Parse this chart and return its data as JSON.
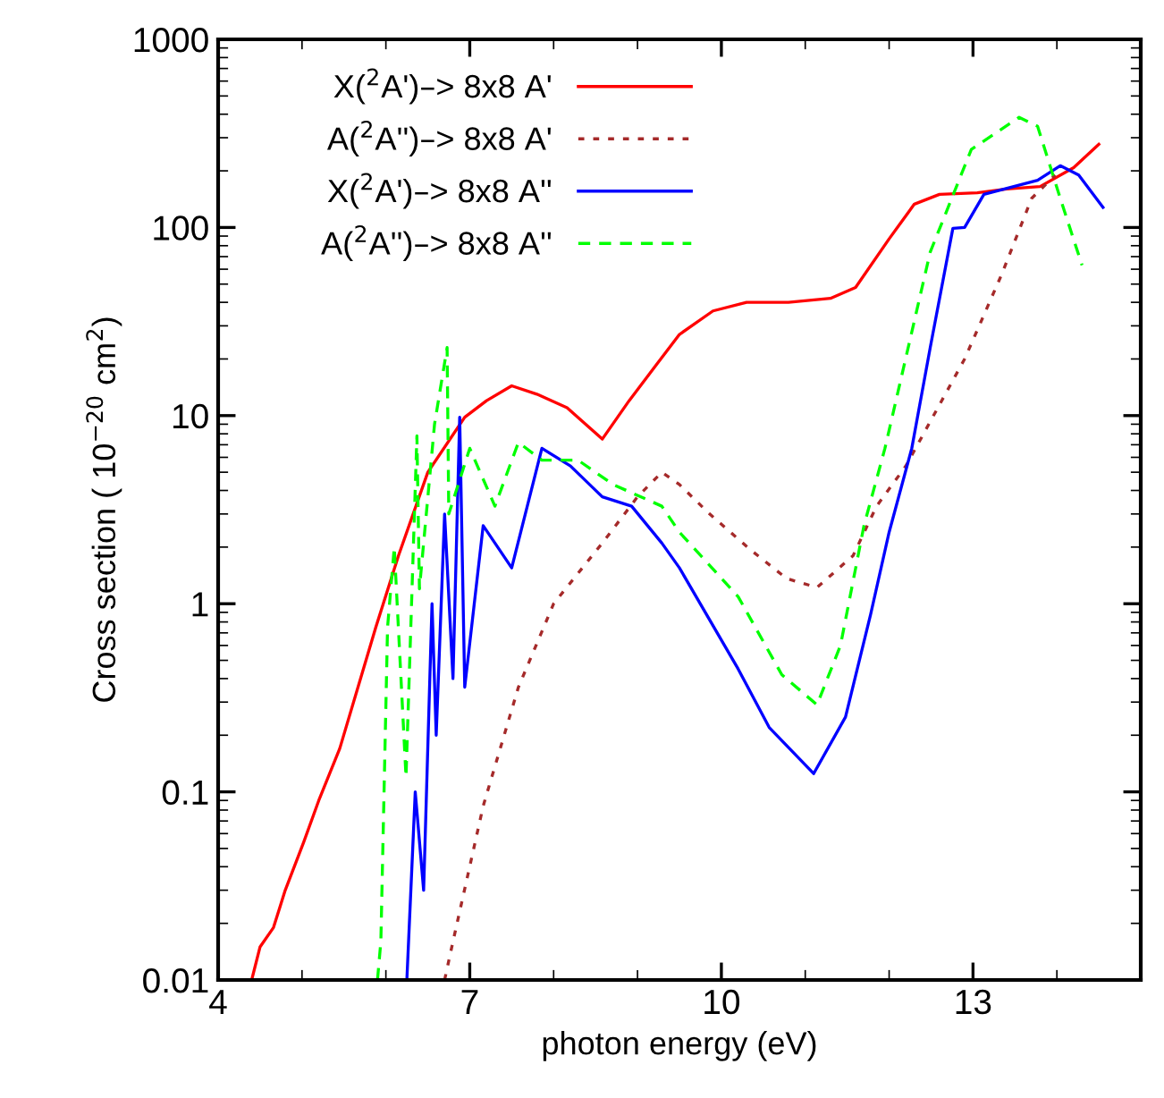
{
  "chart_data": {
    "type": "line",
    "xlabel": "photon energy (eV)",
    "ylabel": "Cross section ( 10$^{−20}$ cm$^{2}$)",
    "log": "y",
    "xlim": [
      4,
      15
    ],
    "xticks": [
      4,
      7,
      10,
      13
    ],
    "ylim": [
      0.01,
      1000
    ],
    "yticks": [
      0.01,
      0.1,
      1,
      10,
      100,
      1000
    ],
    "grid": false,
    "legend": "top left",
    "series": [
      {
        "name": "X($^{2}$A')–> 8x8 A'",
        "color": "#ff0000",
        "line_style": "solid",
        "x": [
          4.4,
          4.5,
          4.66,
          4.8,
          5.02,
          5.2,
          5.45,
          5.88,
          6.15,
          6.5,
          6.94,
          7.2,
          7.5,
          7.8,
          8.16,
          8.58,
          8.9,
          9.2,
          9.5,
          9.9,
          10.3,
          10.8,
          11.3,
          11.6,
          12.0,
          12.3,
          12.6,
          13.05,
          13.4,
          13.8,
          14.2,
          14.5
        ],
        "values": [
          0.01,
          0.015,
          0.019,
          0.03,
          0.054,
          0.09,
          0.17,
          0.75,
          1.8,
          5.0,
          9.8,
          12,
          14.4,
          13,
          11,
          7.5,
          12,
          18,
          27,
          36,
          40,
          40,
          42,
          48,
          87,
          133,
          150,
          153,
          160,
          165,
          208,
          277
        ]
      },
      {
        "name": "A($^{2}$A'')–> 8x8 A'",
        "color": "#a52a2a",
        "line_style": "dotted",
        "x": [
          6.7,
          6.8,
          7.16,
          7.58,
          8.0,
          8.58,
          9.0,
          9.29,
          9.5,
          9.86,
          10.35,
          10.78,
          11.14,
          11.57,
          11.85,
          12.2,
          12.9,
          13.34,
          13.7,
          13.98
        ],
        "values": [
          0.01,
          0.016,
          0.084,
          0.36,
          1.0,
          2.1,
          3.7,
          5.0,
          4.3,
          3.0,
          1.93,
          1.36,
          1.22,
          1.8,
          3.3,
          5.4,
          20,
          56,
          143,
          190
        ]
      },
      {
        "name": "X($^{2}$A')–> 8x8 A''",
        "color": "#0000ff",
        "line_style": "solid",
        "x": [
          6.25,
          6.35,
          6.45,
          6.55,
          6.6,
          6.7,
          6.8,
          6.88,
          6.94,
          7.16,
          7.5,
          7.86,
          8.2,
          8.58,
          8.93,
          9.29,
          9.5,
          10.2,
          10.57,
          11.1,
          11.48,
          11.78,
          12.0,
          12.27,
          12.49,
          12.76,
          12.9,
          13.13,
          13.77,
          14.04,
          14.26,
          14.55
        ],
        "values": [
          0.01,
          0.1,
          0.03,
          1,
          0.2,
          3,
          0.4,
          9.8,
          0.36,
          2.6,
          1.55,
          6.7,
          5.4,
          3.7,
          3.3,
          2.1,
          1.55,
          0.45,
          0.22,
          0.125,
          0.25,
          0.88,
          2.4,
          6.7,
          23,
          99,
          100,
          150,
          178,
          213,
          190,
          128
        ]
      },
      {
        "name": "A($^{2}$A'')–> 8x8 A''",
        "color": "#00ff00",
        "line_style": "dashed",
        "x": [
          5.9,
          5.94,
          6.02,
          6.1,
          6.24,
          6.37,
          6.4,
          6.58,
          6.73,
          6.75,
          7.0,
          7.3,
          7.58,
          7.86,
          8.29,
          8.71,
          9.29,
          9.5,
          10.2,
          10.72,
          11.14,
          11.42,
          11.7,
          11.95,
          12.49,
          12.98,
          13.55,
          13.77,
          14.04,
          14.3
        ],
        "values": [
          0.01,
          0.016,
          0.75,
          2,
          0.12,
          7.8,
          1.2,
          9,
          23,
          3,
          6.7,
          3.3,
          7.2,
          5.8,
          5.8,
          4.3,
          3.3,
          2.4,
          1.09,
          0.42,
          0.29,
          0.6,
          2.6,
          6.7,
          74,
          260,
          385,
          345,
          143,
          63
        ]
      }
    ]
  }
}
